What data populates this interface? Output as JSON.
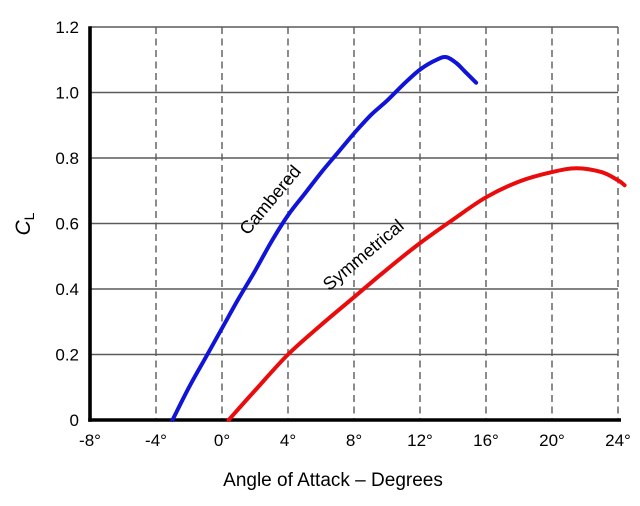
{
  "chart_data": {
    "type": "line",
    "xlabel": "Angle of Attack – Degrees",
    "ylabel": "CL",
    "ylabel_main": "C",
    "ylabel_sub": "L",
    "xlim": [
      -8,
      24
    ],
    "ylim": [
      0,
      1.2
    ],
    "x_ticks": [
      -8,
      -4,
      0,
      4,
      8,
      12,
      16,
      20,
      24
    ],
    "x_tick_labels": [
      "-8°",
      "-4°",
      "0°",
      "4°",
      "8°",
      "12°",
      "16°",
      "20°",
      "24°"
    ],
    "y_ticks": [
      0,
      0.2,
      0.4,
      0.6,
      0.8,
      1.0,
      1.2
    ],
    "y_tick_labels": [
      "0",
      "0.2",
      "0.4",
      "0.6",
      "0.8",
      "1.0",
      "1.2"
    ],
    "grid": {
      "horizontal": "solid",
      "vertical": "dashed",
      "color": "#5a5a5a"
    },
    "axis_color": "#000000",
    "background": "#ffffff",
    "legend_position": "inline-rotated-labels",
    "series": [
      {
        "name": "Cambered",
        "color": "#0f14d8",
        "label": {
          "text": "Cambered",
          "x": 3.2,
          "y": 0.66,
          "rotation": -50
        },
        "points": [
          [
            -3,
            0
          ],
          [
            -2,
            0.1
          ],
          [
            -1,
            0.19
          ],
          [
            0,
            0.28
          ],
          [
            1,
            0.37
          ],
          [
            2,
            0.455
          ],
          [
            3,
            0.545
          ],
          [
            4,
            0.625
          ],
          [
            5,
            0.69
          ],
          [
            6,
            0.755
          ],
          [
            7,
            0.815
          ],
          [
            8,
            0.875
          ],
          [
            9,
            0.93
          ],
          [
            10,
            0.975
          ],
          [
            11,
            1.025
          ],
          [
            12,
            1.07
          ],
          [
            13,
            1.1
          ],
          [
            13.6,
            1.108
          ],
          [
            14.2,
            1.09
          ],
          [
            14.8,
            1.06
          ],
          [
            15.4,
            1.03
          ]
        ]
      },
      {
        "name": "Symmetrical",
        "color": "#ea0c0c",
        "label": {
          "text": "Symmetrical",
          "x": 8.8,
          "y": 0.49,
          "rotation": -40
        },
        "points": [
          [
            0.4,
            0
          ],
          [
            2,
            0.09
          ],
          [
            4,
            0.2
          ],
          [
            6,
            0.29
          ],
          [
            8,
            0.375
          ],
          [
            10,
            0.46
          ],
          [
            12,
            0.54
          ],
          [
            14,
            0.612
          ],
          [
            16,
            0.68
          ],
          [
            18,
            0.728
          ],
          [
            20,
            0.757
          ],
          [
            21.5,
            0.769
          ],
          [
            23,
            0.757
          ],
          [
            24,
            0.732
          ],
          [
            24.4,
            0.717
          ]
        ]
      }
    ]
  }
}
